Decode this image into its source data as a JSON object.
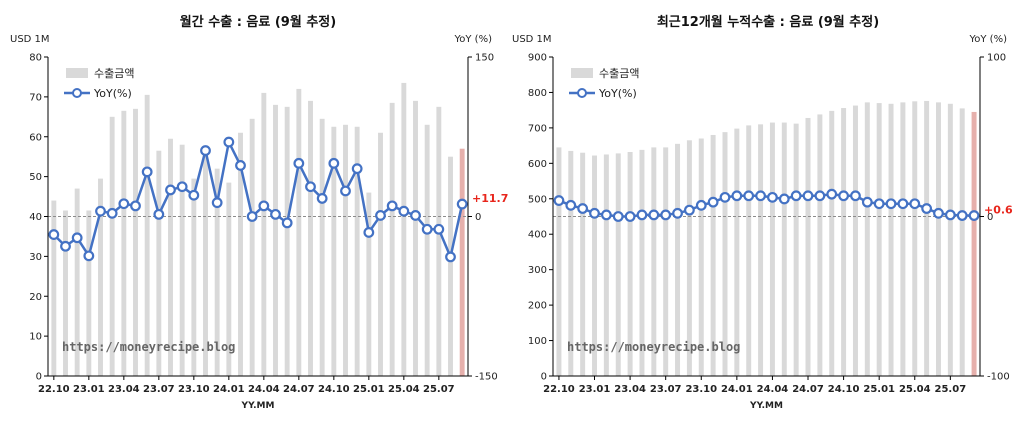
{
  "chart_data": [
    {
      "type": "bar+line",
      "title": "월간 수출 : 음료 (9월 추정)",
      "ylabel_left": "USD 1M",
      "ylabel_right": "YoY (%)",
      "xlabel": "YY.MM",
      "ylim_left": [
        0,
        80
      ],
      "yticks_left": [
        "0",
        "10",
        "20",
        "30",
        "40",
        "50",
        "60",
        "70",
        "80"
      ],
      "ylim_right": [
        -150,
        150
      ],
      "yticks_right": [
        "-150",
        "0",
        "150"
      ],
      "xtick_labels": [
        "22.10",
        "23.01",
        "23.04",
        "23.07",
        "23.10",
        "24.01",
        "24.04",
        "24.07",
        "24.10",
        "25.01",
        "25.04",
        "25.07"
      ],
      "xtick_index": [
        0,
        3,
        6,
        9,
        12,
        15,
        18,
        21,
        24,
        27,
        30,
        33
      ],
      "legend": [
        "수출금액",
        "YoY(%)"
      ],
      "legend_position": "top-left",
      "watermark": "https://moneyrecipe.blog",
      "last_value_label": "+11.7",
      "bar_color": "#d9d9d9",
      "last_bar_color": "#e6b0ac",
      "line_color": "#4472c4",
      "months": [
        "22.10",
        "22.11",
        "22.12",
        "23.01",
        "23.02",
        "23.03",
        "23.04",
        "23.05",
        "23.06",
        "23.07",
        "23.08",
        "23.09",
        "23.10",
        "23.11",
        "23.12",
        "24.01",
        "24.02",
        "24.03",
        "24.04",
        "24.05",
        "24.06",
        "24.07",
        "24.08",
        "24.09",
        "24.10",
        "24.11",
        "24.12",
        "25.01",
        "25.02",
        "25.03",
        "25.04",
        "25.05",
        "25.06",
        "25.07",
        "25.08",
        "25.09"
      ],
      "bars": [
        44,
        41.5,
        47,
        41.5,
        49.5,
        65,
        66.5,
        67,
        70.5,
        56.5,
        59.5,
        58,
        49.5,
        55.5,
        52,
        48.5,
        61,
        64.5,
        71,
        68,
        67.5,
        72,
        69,
        64.5,
        62.5,
        63,
        62.5,
        46,
        61,
        68.5,
        73.5,
        69,
        63,
        67.5,
        55,
        57
      ],
      "yoy": [
        -17,
        -28,
        -20,
        -37,
        5,
        3,
        12,
        10,
        42,
        2,
        25,
        28,
        20,
        62,
        13,
        70,
        48,
        0,
        10,
        2,
        -6,
        50,
        28,
        17,
        50,
        24,
        45,
        -15,
        1,
        10,
        5,
        1,
        -12,
        -12,
        -38,
        11.7
      ]
    },
    {
      "type": "bar+line",
      "title": "최근12개월 누적수출 : 음료 (9월 추정)",
      "ylabel_left": "USD 1M",
      "ylabel_right": "YoY (%)",
      "xlabel": "YY.MM",
      "ylim_left": [
        0,
        900
      ],
      "yticks_left": [
        "0",
        "100",
        "200",
        "300",
        "400",
        "500",
        "600",
        "700",
        "800",
        "900"
      ],
      "ylim_right": [
        -100,
        100
      ],
      "yticks_right": [
        "-100",
        "0",
        "100"
      ],
      "xtick_labels": [
        "22.10",
        "23.01",
        "23.04",
        "23.07",
        "23.10",
        "24.01",
        "24.04",
        "24.07",
        "24.10",
        "25.01",
        "25.04",
        "25.07"
      ],
      "xtick_index": [
        0,
        3,
        6,
        9,
        12,
        15,
        18,
        21,
        24,
        27,
        30,
        33
      ],
      "legend": [
        "수출금액",
        "YoY(%)"
      ],
      "legend_position": "top-left",
      "watermark": "https://moneyrecipe.blog",
      "last_value_label": "+0.6",
      "bar_color": "#d9d9d9",
      "last_bar_color": "#e6b0ac",
      "line_color": "#4472c4",
      "months": [
        "22.10",
        "22.11",
        "22.12",
        "23.01",
        "23.02",
        "23.03",
        "23.04",
        "23.05",
        "23.06",
        "23.07",
        "23.08",
        "23.09",
        "23.10",
        "23.11",
        "23.12",
        "24.01",
        "24.02",
        "24.03",
        "24.04",
        "24.05",
        "24.06",
        "24.07",
        "24.08",
        "24.09",
        "24.10",
        "24.11",
        "24.12",
        "25.01",
        "25.02",
        "25.03",
        "25.04",
        "25.05",
        "25.06",
        "25.07",
        "25.08",
        "25.09"
      ],
      "bars": [
        645,
        635,
        630,
        622,
        625,
        628,
        632,
        638,
        645,
        645,
        655,
        665,
        670,
        680,
        688,
        698,
        707,
        710,
        715,
        715,
        712,
        728,
        738,
        748,
        756,
        763,
        772,
        770,
        768,
        772,
        775,
        776,
        772,
        768,
        755,
        745
      ],
      "yoy": [
        10,
        7,
        5,
        2,
        1,
        0,
        0,
        1,
        1,
        1,
        2,
        4,
        7,
        9,
        12,
        13,
        13,
        13,
        12,
        11,
        13,
        13,
        13,
        14,
        13,
        13,
        9,
        8,
        8,
        8,
        8,
        5,
        2,
        1,
        0.6,
        0.6
      ]
    }
  ]
}
